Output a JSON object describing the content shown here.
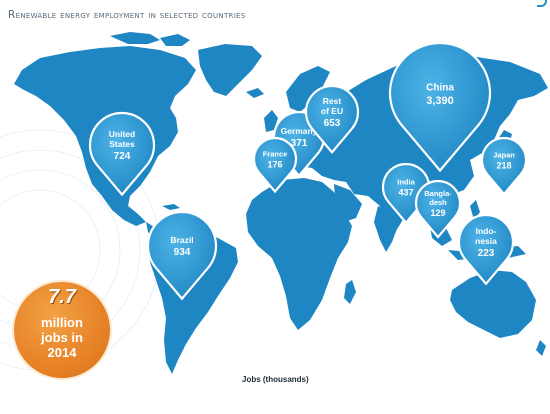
{
  "title": "Renewable energy employment in selected countries",
  "caption": "Jobs (thousands)",
  "total": {
    "value": "7.7",
    "line1": "million",
    "line2": "jobs in",
    "line3": "2014"
  },
  "colors": {
    "land": "#1f86c4",
    "pin": "#2e9ad3",
    "badge": "#e8842a",
    "title": "#5a6b78"
  },
  "countries": [
    {
      "id": "united-states",
      "lines": [
        "United",
        "States"
      ],
      "value": "724"
    },
    {
      "id": "brazil",
      "lines": [
        "Brazil"
      ],
      "value": "934"
    },
    {
      "id": "germany",
      "lines": [
        "Germany"
      ],
      "value": "371"
    },
    {
      "id": "france",
      "lines": [
        "France"
      ],
      "value": "176"
    },
    {
      "id": "rest-of-eu",
      "lines": [
        "Rest",
        "of EU"
      ],
      "value": "653"
    },
    {
      "id": "china",
      "lines": [
        "China"
      ],
      "value": "3,390"
    },
    {
      "id": "japan",
      "lines": [
        "Japan"
      ],
      "value": "218"
    },
    {
      "id": "india",
      "lines": [
        "India"
      ],
      "value": "437"
    },
    {
      "id": "bangladesh",
      "lines": [
        "Bangla-",
        "desh"
      ],
      "value": "129"
    },
    {
      "id": "indonesia",
      "lines": [
        "Indo-",
        "nesia"
      ],
      "value": "223"
    }
  ]
}
